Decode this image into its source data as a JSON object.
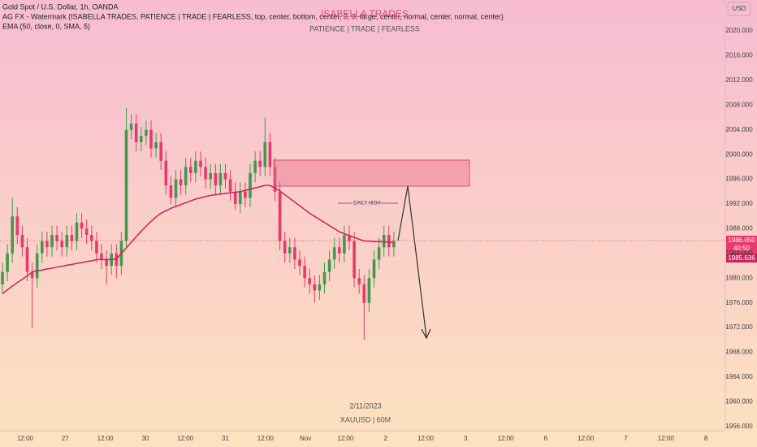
{
  "header": {
    "symbol": "Gold Spot / U.S. Dollar, 1h, OANDA",
    "watermark_indicator": "AG FX - Watermark (ISABELLA TRADES, PATIENCE | TRADE | FEARLESS, top, center, bottom, center, 0, 0, large, center, normal, center, normal, center)",
    "ema_indicator": "EMA (50, close, 0, SMA, 5)",
    "currency": "USD"
  },
  "watermark": {
    "title": "ISABELLA TRADES",
    "subtitle": "PATIENCE | TRADE | FEARLESS",
    "date": "2/11/2023",
    "ticker": "XAUUSD | 60M"
  },
  "annotation": "DAILY HIGH",
  "price_labels": {
    "last": "1986.050",
    "countdown": "40:50",
    "ema": "1985.636"
  },
  "chart_data": {
    "type": "candlestick",
    "up_color": "#3f9a4f",
    "down_color": "#e8386c",
    "ema_color": "#c8245e",
    "ylim": [
      1954,
      2025
    ],
    "yticks": [
      {
        "value": 2020,
        "label": "2020.000"
      },
      {
        "value": 2016,
        "label": "2016.000"
      },
      {
        "value": 2012,
        "label": "2012.000"
      },
      {
        "value": 2008,
        "label": "2008.000"
      },
      {
        "value": 2004,
        "label": "2004.000"
      },
      {
        "value": 2000,
        "label": "2000.000"
      },
      {
        "value": 1996,
        "label": "1996.000"
      },
      {
        "value": 1992,
        "label": "1992.000"
      },
      {
        "value": 1988,
        "label": "1988.000"
      },
      {
        "value": 1984,
        "label": "1984.000"
      },
      {
        "value": 1980,
        "label": "1980.000"
      },
      {
        "value": 1976,
        "label": "1976.000"
      },
      {
        "value": 1972,
        "label": "1972.000"
      },
      {
        "value": 1968,
        "label": "1968.000"
      },
      {
        "value": 1964,
        "label": "1964.000"
      },
      {
        "value": 1960,
        "label": "1960.000"
      },
      {
        "value": 1956,
        "label": "1956.000"
      }
    ],
    "x_labels": [
      "12:00",
      "27",
      "12:00",
      "30",
      "12:00",
      "31",
      "12:00",
      "Nov",
      "12:00",
      "2",
      "12:00",
      "3",
      "12:00",
      "6",
      "12:00",
      "7",
      "12:00",
      "8"
    ],
    "open": [
      1979,
      1981,
      1984,
      1990,
      1987,
      1985,
      1981,
      1980,
      1984,
      1986,
      1985,
      1987,
      1986,
      1985,
      1987,
      1986,
      1989,
      1988,
      1987,
      1986,
      1984,
      1983,
      1982,
      1984,
      1982,
      1986,
      2004,
      2005,
      2002,
      2003,
      2004,
      2001,
      2002,
      1999,
      1995,
      1993,
      1996,
      1995,
      1998,
      1997,
      1999,
      1998,
      1996,
      1997,
      1995,
      1997,
      1996,
      1994,
      1992,
      1994,
      1993,
      1997,
      1999,
      1998,
      2002,
      1998,
      1994,
      1986,
      1984,
      1985,
      1983,
      1982,
      1980,
      1979,
      1978,
      1979,
      1981,
      1983,
      1985,
      1984,
      1987,
      1986,
      1980,
      1979,
      1976,
      1980,
      1983,
      1985,
      1987,
      1985
    ],
    "high": [
      1982.5,
      1985.5,
      1993,
      1991.5,
      1988.5,
      1986.5,
      1982.5,
      1985.5,
      1987.5,
      1987.5,
      1988.5,
      1988.5,
      1987.5,
      1988.5,
      1988.5,
      1990.5,
      1990.5,
      1989.5,
      1988.5,
      1987.5,
      1985.5,
      1984.5,
      1985.5,
      1985.5,
      1987.5,
      2007.5,
      2006.5,
      2006.5,
      2004.5,
      2005.5,
      2005.5,
      2003.5,
      2003.5,
      2000.5,
      1996.5,
      1997.5,
      1997.5,
      1999.5,
      1999.5,
      2000.5,
      2000.5,
      1999.5,
      1998.5,
      1998.5,
      1998.5,
      1998.5,
      1997.5,
      1995.5,
      1995.5,
      1995.5,
      1998.5,
      2000.5,
      2000.5,
      2006,
      2003.5,
      1999.5,
      1995.5,
      1987.5,
      1986.5,
      1986.5,
      1984.5,
      1983.5,
      1981.5,
      1980.5,
      1980.5,
      1982.5,
      1984.5,
      1986.5,
      1986.5,
      1988.5,
      1988.5,
      1987.5,
      1981.5,
      1980.5,
      1981.5,
      1984.5,
      1986.5,
      1988.5,
      1988.5,
      1987.5
    ],
    "low": [
      1977.5,
      1979.5,
      1982.5,
      1985.5,
      1983.5,
      1979.5,
      1972,
      1978.5,
      1982.5,
      1983.5,
      1983.5,
      1984.5,
      1983.5,
      1983.5,
      1984.5,
      1984.5,
      1986.5,
      1985.5,
      1984.5,
      1982.5,
      1981.5,
      1979,
      1980.5,
      1980,
      1980.5,
      1985,
      2002.5,
      2000.5,
      2000.5,
      2001.5,
      1999.5,
      1999.5,
      1997.5,
      1993.5,
      1992,
      1991.5,
      1993.5,
      1993.5,
      1995.5,
      1995.5,
      1996.5,
      1994.5,
      1994.5,
      1993.5,
      1993.5,
      1994.5,
      1992.5,
      1991,
      1990.5,
      1991.5,
      1991.5,
      1995.5,
      1996.5,
      1996.5,
      1996.5,
      1992.5,
      1984.5,
      1982.5,
      1982.5,
      1981.5,
      1980.5,
      1978.5,
      1977.5,
      1976,
      1976.5,
      1977.5,
      1979.5,
      1981.5,
      1982.5,
      1982.5,
      1984.5,
      1978.5,
      1977.5,
      1970,
      1974.5,
      1978.5,
      1981.5,
      1983.5,
      1983.5,
      1983.5
    ],
    "close": [
      1981,
      1984,
      1990,
      1987,
      1985,
      1981,
      1980,
      1984,
      1986,
      1985,
      1987,
      1986,
      1985,
      1987,
      1986,
      1989,
      1988,
      1987,
      1986,
      1984,
      1983,
      1982,
      1984,
      1982,
      1986,
      2004,
      2005,
      2002,
      2003,
      2004,
      2001,
      2002,
      1999,
      1995,
      1993,
      1996,
      1995,
      1998,
      1997,
      1999,
      1998,
      1996,
      1997,
      1995,
      1997,
      1996,
      1994,
      1992,
      1994,
      1993,
      1997,
      1999,
      1998,
      2002,
      1998,
      1994,
      1986,
      1984,
      1985,
      1983,
      1982,
      1980,
      1979,
      1978,
      1979,
      1981,
      1983,
      1985,
      1984,
      1987,
      1986,
      1980,
      1979,
      1976,
      1980,
      1983,
      1985,
      1987,
      1985,
      1986
    ],
    "ema": [
      1977.5,
      1978.1,
      1978.7,
      1979.3,
      1979.8,
      1980.4,
      1981,
      1981.2,
      1981.3,
      1981.5,
      1981.6,
      1981.8,
      1981.9,
      1982.1,
      1982.2,
      1982.4,
      1982.5,
      1982.7,
      1982.8,
      1983,
      1983,
      1983,
      1983,
      1983.1,
      1984,
      1984.9,
      1985.8,
      1986.7,
      1987.6,
      1988.4,
      1989.2,
      1989.9,
      1990.5,
      1990.9,
      1991.3,
      1991.6,
      1991.9,
      1992.2,
      1992.5,
      1992.8,
      1993,
      1993.2,
      1993.4,
      1993.5,
      1993.6,
      1993.7,
      1993.8,
      1993.9,
      1994,
      1994.2,
      1994.4,
      1994.6,
      1994.8,
      1995,
      1995,
      1994.6,
      1994.1,
      1993.5,
      1992.9,
      1992.3,
      1991.7,
      1991.1,
      1990.5,
      1990,
      1989.5,
      1989,
      1988.5,
      1988,
      1987.5,
      1987.2,
      1986.9,
      1986.6,
      1986.3,
      1986,
      1986,
      1985.9,
      1985.9,
      1985.9,
      1985.8,
      1985.8
    ]
  }
}
